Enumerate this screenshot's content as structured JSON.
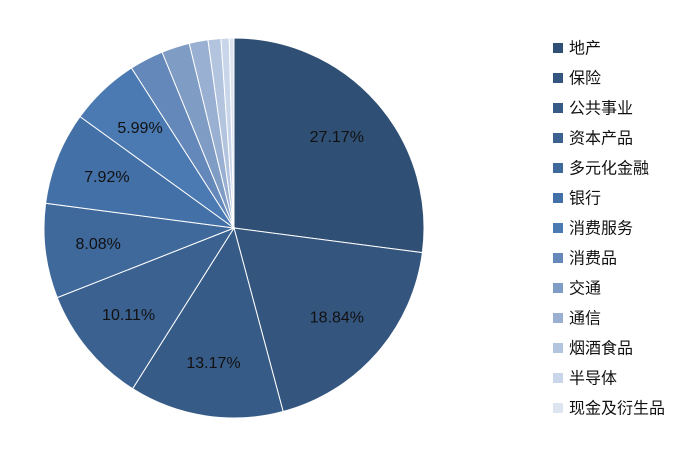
{
  "chart_data": {
    "type": "pie",
    "legend_position": "right",
    "slices": [
      {
        "name": "地产",
        "value": 27.17,
        "label": "27.17%",
        "color": "#2f4f74"
      },
      {
        "name": "保险",
        "value": 18.84,
        "label": "18.84%",
        "color": "#34557e"
      },
      {
        "name": "公共事业",
        "value": 13.17,
        "label": "13.17%",
        "color": "#375b87"
      },
      {
        "name": "资本产品",
        "value": 10.11,
        "label": "10.11%",
        "color": "#3b6191"
      },
      {
        "name": "多元化金融",
        "value": 8.08,
        "label": "8.08%",
        "color": "#3f689b"
      },
      {
        "name": "银行",
        "value": 7.92,
        "label": "7.92%",
        "color": "#4370a6"
      },
      {
        "name": "消费服务",
        "value": 5.99,
        "label": "5.99%",
        "color": "#4b7ab3"
      },
      {
        "name": "消费品",
        "value": 2.9,
        "label": "",
        "color": "#6488b9"
      },
      {
        "name": "交通",
        "value": 2.4,
        "label": "",
        "color": "#7f9cc5"
      },
      {
        "name": "通信",
        "value": 1.6,
        "label": "",
        "color": "#99b0d2"
      },
      {
        "name": "烟酒食品",
        "value": 1.1,
        "label": "",
        "color": "#b3c4de"
      },
      {
        "name": "半导体",
        "value": 0.7,
        "label": "",
        "color": "#c9d5e9"
      },
      {
        "name": "现金及衍生品",
        "value": 0.4,
        "label": "",
        "color": "#dde5f1"
      }
    ]
  }
}
